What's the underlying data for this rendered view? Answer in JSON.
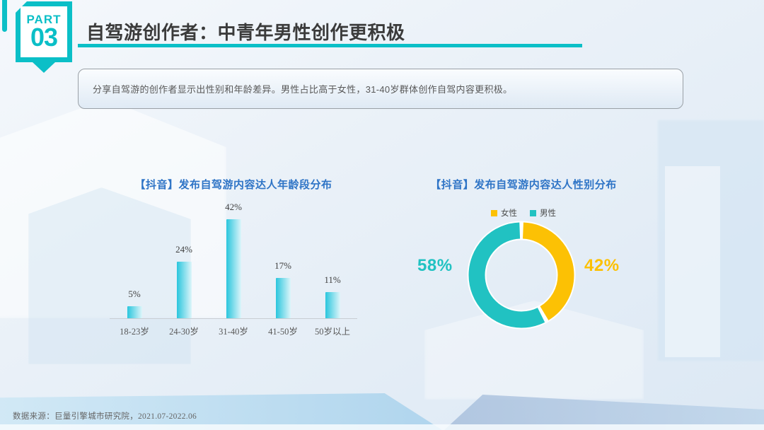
{
  "slide": {
    "badge": {
      "part_label": "PART",
      "part_number": "03"
    },
    "title": "自驾游创作者：中青年男性创作更积极",
    "summary": "分享自驾游的创作者显示出性别和年龄差异。男性占比高于女性，31-40岁群体创作自驾内容更积极。",
    "footer_source": "数据来源：巨量引擎城市研究院，2021.07-2022.06"
  },
  "colors": {
    "accent_teal": "#0bbfc7",
    "chart_title_blue": "#2e74c6",
    "title_dark": "#3b3b3b",
    "body_gray": "#595959"
  },
  "chart_data": [
    {
      "type": "bar",
      "title": "【抖音】发布自驾游内容达人年龄段分布",
      "categories": [
        "18-23岁",
        "24-30岁",
        "31-40岁",
        "41-50岁",
        "50岁以上"
      ],
      "values": [
        5,
        24,
        42,
        17,
        11
      ],
      "value_labels": [
        "5%",
        "24%",
        "42%",
        "17%",
        "11%"
      ],
      "xlabel": "",
      "ylabel": "",
      "ylim": [
        0,
        45
      ],
      "grid": false,
      "legend_position": "none",
      "bar_gradient": [
        "#2ac6dd",
        "#ddf5fa"
      ]
    },
    {
      "type": "pie",
      "subtype": "donut",
      "title": "【抖音】发布自驾游内容达人性别分布",
      "legend_position": "top",
      "start_angle_deg": 0,
      "direction": "clockwise",
      "slices": [
        {
          "label": "女性",
          "value": 42,
          "display": "42%",
          "color": "#fcc104"
        },
        {
          "label": "男性",
          "value": 58,
          "display": "58%",
          "color": "#21c2c2"
        }
      ]
    }
  ]
}
